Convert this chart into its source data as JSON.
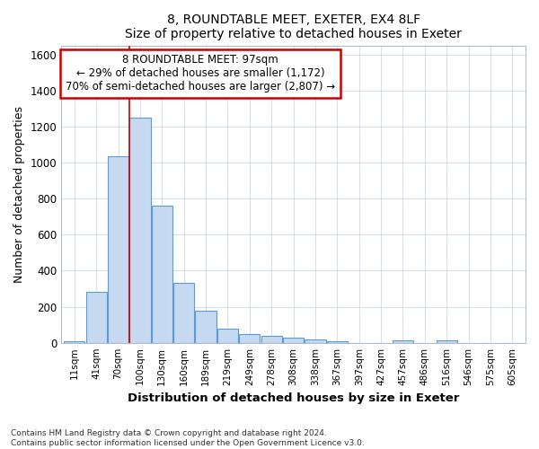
{
  "title1": "8, ROUNDTABLE MEET, EXETER, EX4 8LF",
  "title2": "Size of property relative to detached houses in Exeter",
  "xlabel": "Distribution of detached houses by size in Exeter",
  "ylabel": "Number of detached properties",
  "bar_labels": [
    "11sqm",
    "41sqm",
    "70sqm",
    "100sqm",
    "130sqm",
    "160sqm",
    "189sqm",
    "219sqm",
    "249sqm",
    "278sqm",
    "308sqm",
    "338sqm",
    "367sqm",
    "397sqm",
    "427sqm",
    "457sqm",
    "486sqm",
    "516sqm",
    "546sqm",
    "575sqm",
    "605sqm"
  ],
  "bar_values": [
    10,
    280,
    1035,
    1250,
    760,
    330,
    180,
    80,
    48,
    38,
    26,
    18,
    8,
    0,
    0,
    15,
    0,
    14,
    0,
    0,
    0
  ],
  "bar_color": "#c5d9f0",
  "bar_edge_color": "#5b9bd5",
  "ylim": [
    0,
    1650
  ],
  "yticks": [
    0,
    200,
    400,
    600,
    800,
    1000,
    1200,
    1400,
    1600
  ],
  "vline_pos": 2.5,
  "vline_color": "#cc0000",
  "annotation_title": "8 ROUNDTABLE MEET: 97sqm",
  "annotation_line1": "← 29% of detached houses are smaller (1,172)",
  "annotation_line2": "70% of semi-detached houses are larger (2,807) →",
  "annotation_box_color": "#ffffff",
  "annotation_border_color": "#cc0000",
  "footer1": "Contains HM Land Registry data © Crown copyright and database right 2024.",
  "footer2": "Contains public sector information licensed under the Open Government Licence v3.0.",
  "bg_color": "#ffffff",
  "plot_bg_color": "#ffffff",
  "grid_color": "#d0d8e8"
}
